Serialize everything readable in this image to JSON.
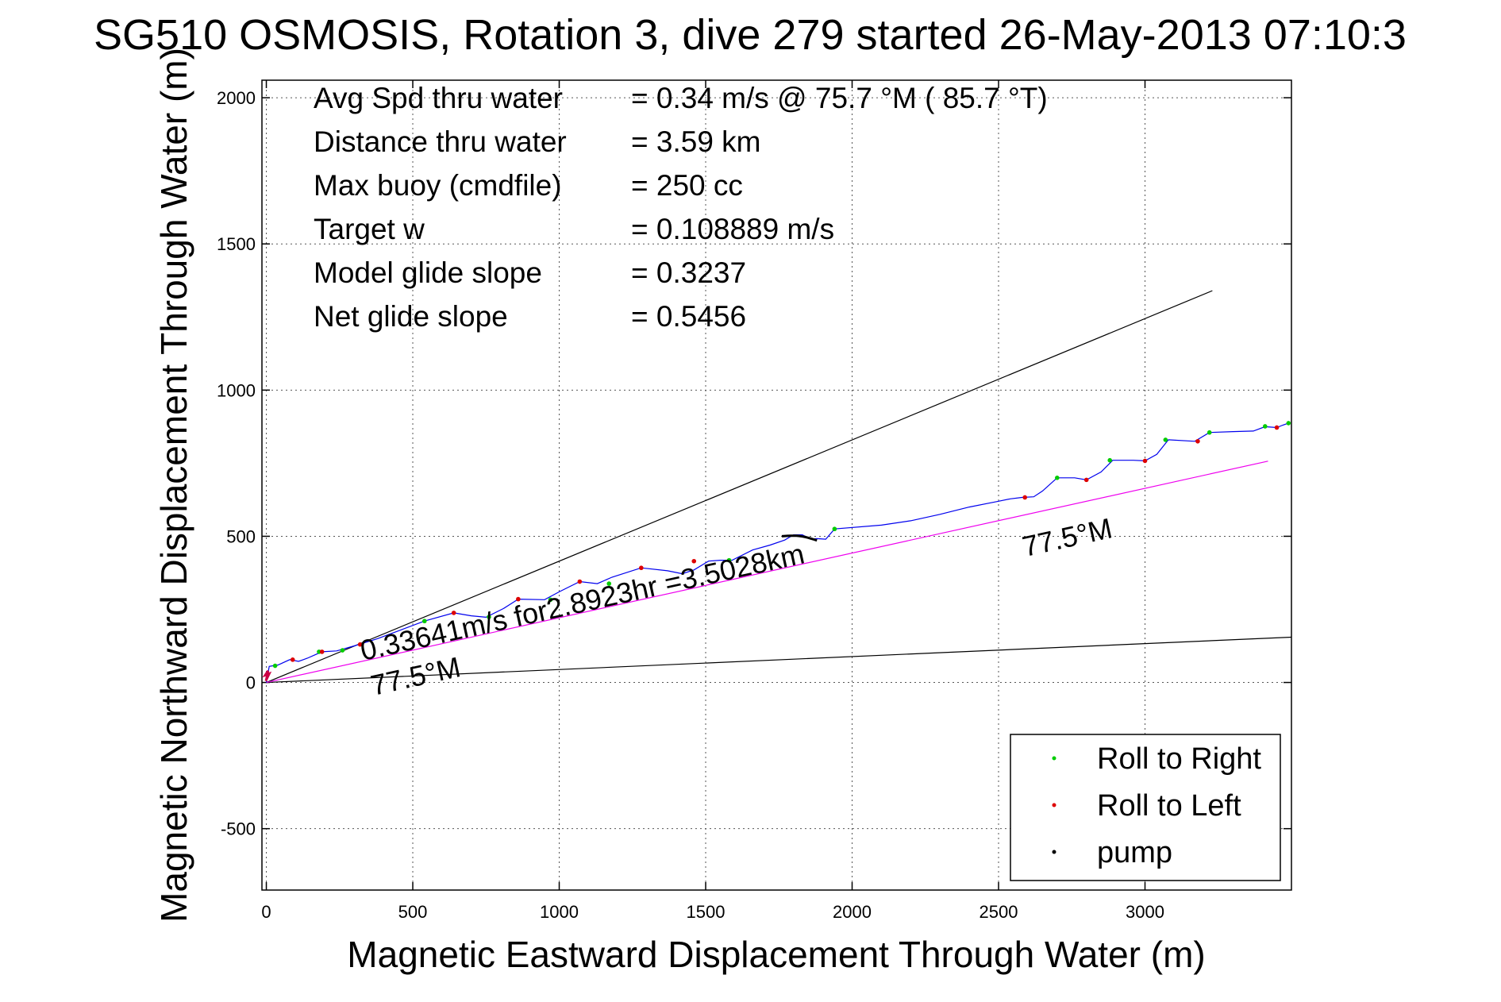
{
  "chart_data": {
    "type": "scatter",
    "title": "SG510 OSMOSIS, Rotation 3, dive 279 started 26-May-2013 07:10:3",
    "xlabel": "Magnetic Eastward Displacement Through Water (m)",
    "ylabel": "Magnetic Northward Displacement Through Water (m)",
    "xlim": [
      -15,
      3500
    ],
    "ylim": [
      -710,
      2060
    ],
    "xticks": [
      0,
      500,
      1000,
      1500,
      2000,
      2500,
      3000
    ],
    "yticks": [
      -500,
      0,
      500,
      1000,
      1500,
      2000
    ],
    "grid": true,
    "legend_position": "bottom-right",
    "stats": [
      {
        "label": "Avg Spd thru water",
        "value": "=  0.34 m/s @  75.7 °M ( 85.7 °T)"
      },
      {
        "label": "Distance thru water",
        "value": "=  3.59 km"
      },
      {
        "label": "Max buoy (cmdfile)",
        "value": "= 250 cc"
      },
      {
        "label": "Target w",
        "value": "= 0.108889 m/s"
      },
      {
        "label": "Model glide slope",
        "value": "= 0.3237"
      },
      {
        "label": "Net glide slope",
        "value": "= 0.5456"
      }
    ],
    "annotations": {
      "speed_text": "0.33641m/s for2.8923hr =3.5028km",
      "heading_near": "77.5°M",
      "heading_far": "77.5°M"
    },
    "reference_lines": [
      {
        "name": "upper bound",
        "color": "#000000",
        "x": [
          0,
          3230
        ],
        "y": [
          0,
          1340
        ]
      },
      {
        "name": "lower bound",
        "color": "#000000",
        "x": [
          0,
          3500
        ],
        "y": [
          0,
          155
        ]
      },
      {
        "name": "heading 77.5°M",
        "color": "#ee00ee",
        "x": [
          0,
          3420
        ],
        "y": [
          0,
          757
        ]
      }
    ],
    "series": [
      {
        "color": "#0000ee",
        "x": [
          0,
          10,
          40,
          80,
          110,
          140,
          190,
          240,
          300,
          380,
          460,
          540,
          640,
          700,
          750,
          810,
          860,
          950,
          1000,
          1070,
          1130,
          1180,
          1280,
          1370,
          1420,
          1460,
          1510,
          1550,
          1590,
          1660,
          1720,
          1770,
          1800,
          1830,
          1860,
          1880,
          1910,
          1940,
          2100,
          2200,
          2300,
          2400,
          2500,
          2540,
          2580,
          2620,
          2650,
          2700,
          2760,
          2800,
          2850,
          2890,
          2960,
          3000,
          3040,
          3080,
          3170,
          3220,
          3300,
          3370,
          3410,
          3450,
          3470,
          3490
        ],
        "y": [
          0,
          55,
          60,
          78,
          72,
          83,
          105,
          108,
          125,
          150,
          180,
          210,
          238,
          228,
          223,
          253,
          285,
          283,
          310,
          345,
          338,
          360,
          392,
          382,
          372,
          385,
          415,
          418,
          418,
          453,
          470,
          487,
          505,
          505,
          490,
          492,
          490,
          525,
          538,
          553,
          575,
          600,
          620,
          628,
          633,
          635,
          655,
          700,
          700,
          693,
          720,
          760,
          760,
          758,
          780,
          830,
          825,
          855,
          858,
          860,
          875,
          872,
          880,
          887
        ]
      }
    ],
    "roll_right": {
      "name": "Roll to Right",
      "color": "#00cc00",
      "x": [
        30,
        180,
        260,
        540,
        760,
        970,
        1170,
        1580,
        1940,
        2700,
        2880,
        3070,
        3220,
        3410,
        3490
      ],
      "y": [
        57,
        105,
        110,
        210,
        224,
        283,
        338,
        418,
        525,
        700,
        760,
        830,
        855,
        876,
        887
      ]
    },
    "roll_left": {
      "name": "Roll to Left",
      "color": "#dd0000",
      "x": [
        90,
        190,
        320,
        640,
        860,
        1070,
        1280,
        1460,
        2590,
        2800,
        3000,
        3180,
        3450
      ],
      "y": [
        78,
        105,
        130,
        238,
        285,
        345,
        392,
        415,
        633,
        693,
        758,
        825,
        872
      ]
    },
    "pump": {
      "name": "pump",
      "color": "#000000"
    },
    "start_cluster_points": [
      [
        0,
        10
      ],
      [
        6,
        40
      ],
      [
        -4,
        25
      ],
      [
        10,
        30
      ],
      [
        -2,
        5
      ]
    ]
  }
}
